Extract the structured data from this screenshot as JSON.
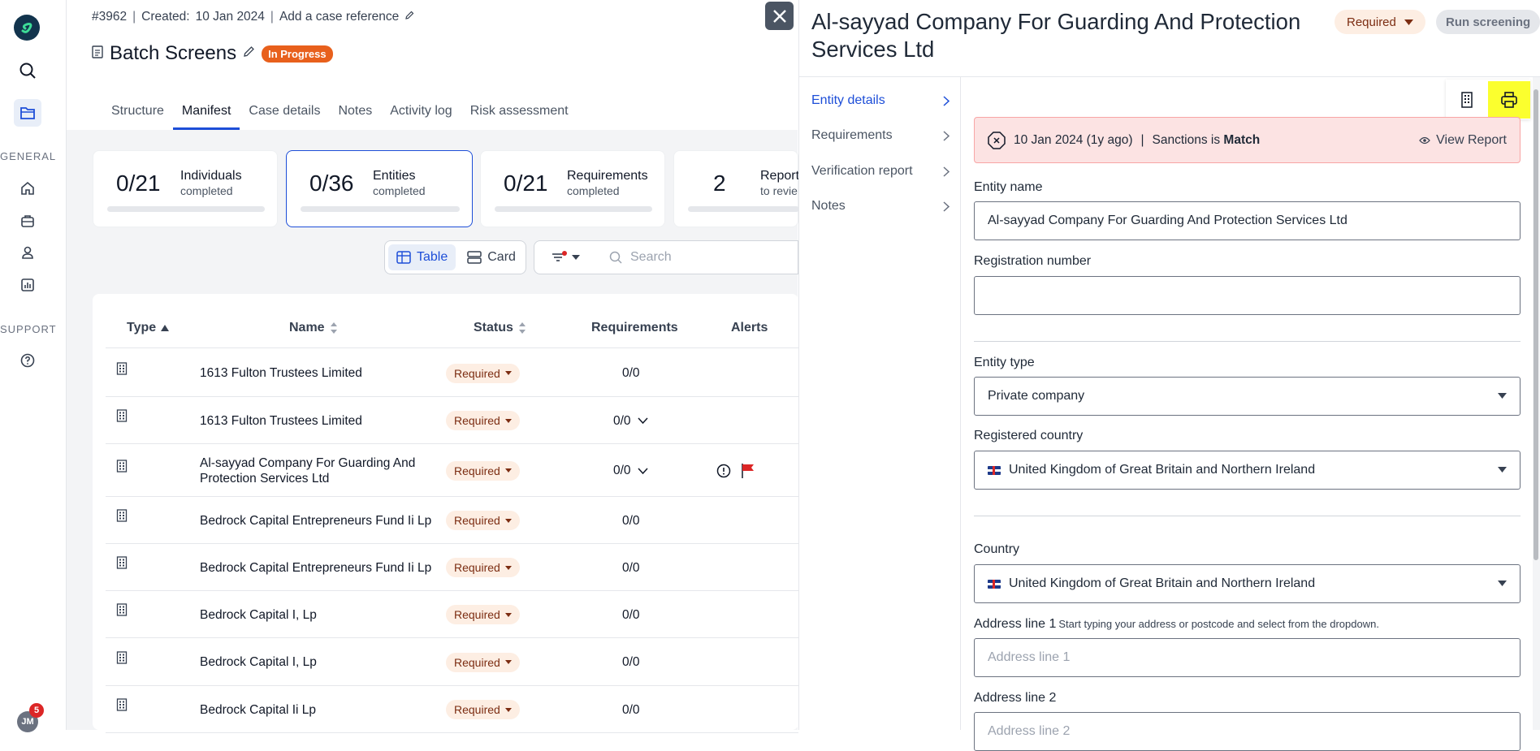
{
  "nav": {
    "general_label": "GENERAL",
    "support_label": "SUPPORT",
    "avatar_initials": "JM",
    "notification_count": "5"
  },
  "case": {
    "number": "#3962",
    "created_label": "Created:",
    "created_date": "10 Jan 2024",
    "add_reference": "Add a case reference",
    "title": "Batch Screens",
    "status": "In Progress"
  },
  "tabs": [
    {
      "label": "Structure"
    },
    {
      "label": "Manifest"
    },
    {
      "label": "Case details"
    },
    {
      "label": "Notes"
    },
    {
      "label": "Activity log"
    },
    {
      "label": "Risk assessment"
    }
  ],
  "stats": [
    {
      "value": "0/21",
      "label": "Individuals",
      "sub": "completed"
    },
    {
      "value": "0/36",
      "label": "Entities",
      "sub": "completed"
    },
    {
      "value": "0/21",
      "label": "Requirements",
      "sub": "completed"
    },
    {
      "value": "2",
      "label": "Report",
      "sub": "to revie"
    }
  ],
  "toolbar": {
    "table_label": "Table",
    "card_label": "Card",
    "search_placeholder": "Search"
  },
  "table": {
    "columns": [
      "Type",
      "Name",
      "Status",
      "Requirements",
      "Alerts"
    ],
    "rows": [
      {
        "name": "1613 Fulton Trustees Limited",
        "status": "Required",
        "requirements": "0/0"
      },
      {
        "name": "1613 Fulton Trustees Limited",
        "status": "Required",
        "requirements": "0/0"
      },
      {
        "name": "Al-sayyad Company For Guarding And Protection Services Ltd",
        "status": "Required",
        "requirements": "0/0"
      },
      {
        "name": "Bedrock Capital Entrepreneurs Fund Ii Lp",
        "status": "Required",
        "requirements": "0/0"
      },
      {
        "name": "Bedrock Capital Entrepreneurs Fund Ii Lp",
        "status": "Required",
        "requirements": "0/0"
      },
      {
        "name": "Bedrock Capital I, Lp",
        "status": "Required",
        "requirements": "0/0"
      },
      {
        "name": "Bedrock Capital I, Lp",
        "status": "Required",
        "requirements": "0/0"
      },
      {
        "name": "Bedrock Capital Ii Lp",
        "status": "Required",
        "requirements": "0/0"
      }
    ]
  },
  "panel": {
    "title": "Al-sayyad Company For Guarding And Protection Services Ltd",
    "status": "Required",
    "run_screening": "Run screening",
    "nav": [
      "Entity details",
      "Requirements",
      "Verification report",
      "Notes"
    ],
    "alert": {
      "date": "10 Jan 2024 (1y ago)",
      "separator": "|",
      "text": "Sanctions is",
      "result": "Match",
      "view_report": "View Report"
    },
    "fields": {
      "entity_name_label": "Entity name",
      "entity_name_value": "Al-sayyad Company For Guarding And Protection Services Ltd",
      "registration_label": "Registration number",
      "registration_value": "",
      "entity_type_label": "Entity type",
      "entity_type_value": "Private company",
      "registered_country_label": "Registered country",
      "registered_country_value": "United Kingdom of Great Britain and Northern Ireland",
      "country_label": "Country",
      "country_value": "United Kingdom of Great Britain and Northern Ireland",
      "address1_label": "Address line 1",
      "address1_hint": "Start typing your address or postcode and select from the dropdown.",
      "address1_placeholder": "Address line 1",
      "address2_label": "Address line 2",
      "address2_placeholder": "Address line 2"
    }
  },
  "colors": {
    "accent": "#1d4ed8",
    "status_orange": "#e8601c",
    "alert_bg": "#fce3e3",
    "highlight": "#fbff2e"
  }
}
